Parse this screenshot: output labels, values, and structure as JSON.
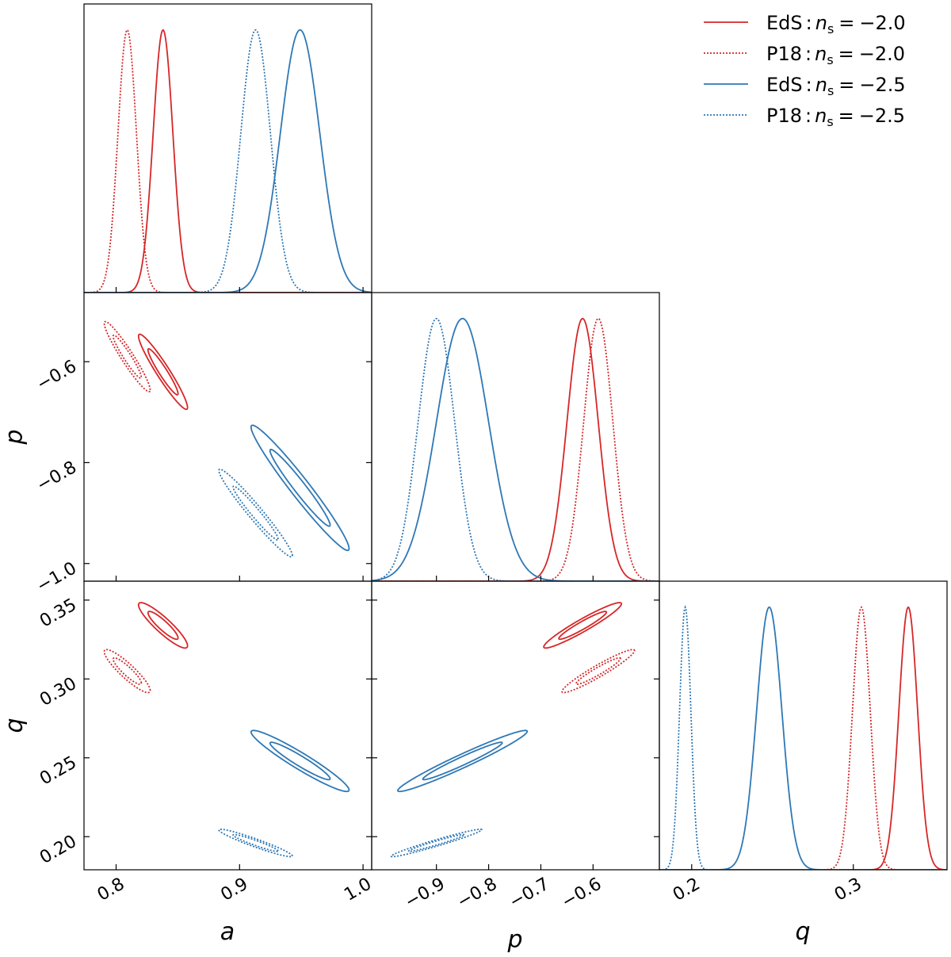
{
  "chart_data": {
    "type": "corner",
    "parameters": [
      {
        "label": "a",
        "xlim": [
          0.774,
          1.007
        ],
        "xticks": [
          0.8,
          0.9,
          {
            "value": 1.0,
            "label": "1.0"
          }
        ]
      },
      {
        "label": "p",
        "xlim": [
          -1.024,
          -0.473
        ],
        "xticks": [
          {
            "value": -0.9,
            "label": "−0.9"
          },
          {
            "value": -0.8,
            "label": "−0.8"
          },
          {
            "value": -0.7,
            "label": "−0.7"
          },
          {
            "value": -0.6,
            "label": "−0.6"
          }
        ],
        "ylim": [
          -1.035,
          -0.463
        ],
        "yticks": [
          {
            "value": -0.6,
            "label": "−0.6"
          },
          {
            "value": -0.8,
            "label": "−0.8"
          },
          {
            "value": -1.0,
            "label": "−1.0"
          }
        ]
      },
      {
        "label": "q",
        "xlim": [
          0.18,
          0.358
        ],
        "xticks": [
          0.2,
          0.3
        ],
        "ylim": [
          0.179,
          0.362
        ],
        "yticks": [
          0.35,
          {
            "value": 0.3,
            "label": "0.30"
          },
          0.25,
          {
            "value": 0.2,
            "label": "0.20"
          }
        ]
      }
    ],
    "legend": {
      "symbol": "n",
      "subscript": "s",
      "separators": [
        ":",
        "="
      ],
      "corner": "upper right"
    },
    "series": [
      {
        "name": "EdS",
        "ns": {
          "value": -2.0,
          "label": "−2.0"
        },
        "color": "#d62728",
        "linestyle": "solid",
        "means": [
          0.838,
          -0.62,
          0.334
        ],
        "sigmas": [
          0.008,
          0.03,
          0.0058
        ],
        "correlations": [
          -0.95,
          -0.9,
          0.95
        ]
      },
      {
        "name": "P18",
        "ns": {
          "value": -2.0,
          "label": "−2.0"
        },
        "color": "#d62728",
        "linestyle": "dotted",
        "means": [
          0.809,
          -0.59,
          0.305
        ],
        "sigmas": [
          0.0075,
          0.028,
          0.0055
        ],
        "correlations": [
          -0.95,
          -0.9,
          0.95
        ]
      },
      {
        "name": "EdS",
        "ns": {
          "value": -2.5,
          "label": "−2.5"
        },
        "color": "#2e78b5",
        "linestyle": "solid",
        "means": [
          0.949,
          -0.85,
          0.248
        ],
        "sigmas": [
          0.016,
          0.05,
          0.0078
        ],
        "correlations": [
          -0.97,
          -0.95,
          0.97
        ]
      },
      {
        "name": "P18",
        "ns": {
          "value": -2.5,
          "label": "−2.5"
        },
        "color": "#2e78b5",
        "linestyle": "dotted",
        "means": [
          0.913,
          -0.9,
          0.196
        ],
        "sigmas": [
          0.012,
          0.035,
          0.0035
        ],
        "correlations": [
          -0.97,
          -0.95,
          0.97
        ]
      }
    ]
  }
}
